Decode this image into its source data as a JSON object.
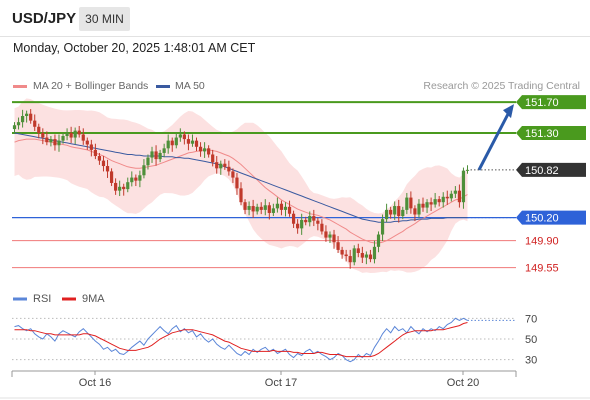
{
  "header": {
    "symbol": "USD/JPY",
    "timeframe": "30 MIN",
    "datetime": "Monday, October 20, 2025 1:48:01 AM CET"
  },
  "legend": {
    "bollinger_label": "MA 20 + Bollinger Bands",
    "ma50_label": "MA 50",
    "research": "Research © 2025 Trading Central",
    "rsi_label": "RSI",
    "rsi_ma_label": "9MA"
  },
  "colors": {
    "up_candle": "#4e8f3a",
    "down_candle": "#c0392b",
    "bollinger_fill": "#fcdcdc",
    "ma20": "#f08a8a",
    "ma50": "#3a5aa0",
    "resistance": "#4a9a1e",
    "pivot": "#2e62d8",
    "support": "#f07878",
    "rsi": "#5b86d8",
    "rsi_ma": "#e02020",
    "projection_arrow": "#2a5aa8"
  },
  "chart_data": [
    {
      "type": "candlestick",
      "title": "USD/JPY",
      "timeframe": "30 MIN",
      "x_tick_labels": [
        "Oct 16",
        "Oct 17",
        "Oct 20"
      ],
      "ylim": [
        149.35,
        151.78
      ],
      "current_price": 150.82,
      "levels": [
        {
          "label": "151.70",
          "value": 151.7,
          "kind": "resistance"
        },
        {
          "label": "151.30",
          "value": 151.3,
          "kind": "resistance"
        },
        {
          "label": "150.82",
          "value": 150.82,
          "kind": "last"
        },
        {
          "label": "150.20",
          "value": 150.2,
          "kind": "pivot"
        },
        {
          "label": "149.90",
          "value": 149.9,
          "kind": "support"
        },
        {
          "label": "149.55",
          "value": 149.55,
          "kind": "support"
        }
      ],
      "projection": {
        "from": 150.82,
        "to": 151.7
      },
      "candles_close": [
        151.4,
        151.44,
        151.52,
        151.55,
        151.46,
        151.38,
        151.3,
        151.24,
        151.18,
        151.22,
        151.14,
        151.2,
        151.26,
        151.3,
        151.24,
        151.33,
        151.28,
        151.2,
        151.15,
        151.08,
        151.0,
        150.94,
        150.87,
        150.8,
        150.65,
        150.55,
        150.6,
        150.57,
        150.66,
        150.72,
        150.68,
        150.75,
        150.88,
        150.98,
        151.06,
        150.96,
        151.04,
        151.1,
        151.2,
        151.14,
        151.24,
        151.28,
        151.22,
        151.16,
        151.2,
        151.12,
        151.06,
        151.1,
        151.02,
        150.92,
        150.84,
        150.9,
        150.86,
        150.8,
        150.72,
        150.58,
        150.4,
        150.3,
        150.35,
        150.28,
        150.34,
        150.3,
        150.36,
        150.26,
        150.32,
        150.38,
        150.3,
        150.34,
        150.25,
        150.12,
        150.06,
        150.17,
        150.14,
        150.22,
        150.16,
        150.12,
        150.02,
        149.94,
        149.98,
        149.88,
        149.78,
        149.72,
        149.7,
        149.62,
        149.8,
        149.74,
        149.68,
        149.72,
        149.66,
        149.82,
        149.98,
        150.18,
        150.3,
        150.24,
        150.35,
        150.22,
        150.3,
        150.46,
        150.32,
        150.24,
        150.38,
        150.33,
        150.4,
        150.37,
        150.44,
        150.4,
        150.47,
        150.45,
        150.51,
        150.55,
        150.4,
        150.81,
        150.82
      ],
      "ma20": [
        151.18,
        151.2,
        151.21,
        151.22,
        151.22,
        151.22,
        151.21,
        151.2,
        151.19,
        151.18,
        151.17,
        151.16,
        151.15,
        151.14,
        151.12,
        151.11,
        151.1,
        151.09,
        151.08,
        151.06,
        151.04,
        151.02,
        151.0,
        150.97,
        150.94,
        150.92,
        150.9,
        150.88,
        150.86,
        150.85,
        150.84,
        150.84,
        150.85,
        150.86,
        150.87,
        150.88,
        150.9,
        150.92,
        150.94,
        150.96,
        150.98,
        151.0,
        151.02,
        151.04,
        151.05,
        151.06,
        151.07,
        151.08,
        151.08,
        151.07,
        151.06,
        151.04,
        151.02,
        151.0,
        150.97,
        150.93,
        150.89,
        150.84,
        150.79,
        150.74,
        150.69,
        150.64,
        150.59,
        150.55,
        150.51,
        150.47,
        150.43,
        150.4,
        150.37,
        150.34,
        150.31,
        150.29,
        150.27,
        150.25,
        150.24,
        150.23,
        150.21,
        150.19,
        150.17,
        150.14,
        150.11,
        150.08,
        150.05,
        150.01,
        149.98,
        149.95,
        149.92,
        149.9,
        149.88,
        149.87,
        149.87,
        149.88,
        149.9,
        149.93,
        149.96,
        149.99,
        150.02,
        150.06,
        150.09,
        150.12,
        150.16,
        150.19,
        150.22,
        150.25,
        150.28,
        150.31,
        150.34,
        150.37,
        150.4,
        150.43,
        150.44,
        150.47,
        150.5
      ],
      "ma50": [
        151.3,
        151.29,
        151.28,
        151.27,
        151.26,
        151.25,
        151.24,
        151.23,
        151.22,
        151.21,
        151.2,
        151.19,
        151.18,
        151.17,
        151.16,
        151.15,
        151.14,
        151.13,
        151.12,
        151.11,
        151.1,
        151.09,
        151.08,
        151.07,
        151.06,
        151.05,
        151.04,
        151.03,
        151.02,
        151.02,
        151.01,
        151.01,
        151.0,
        151.0,
        151.0,
        151.0,
        151.0,
        150.99,
        150.99,
        150.99,
        150.98,
        150.98,
        150.97,
        150.97,
        150.96,
        150.95,
        150.94,
        150.93,
        150.92,
        150.91,
        150.9,
        150.88,
        150.86,
        150.84,
        150.82,
        150.8,
        150.78,
        150.76,
        150.74,
        150.72,
        150.7,
        150.68,
        150.66,
        150.64,
        150.62,
        150.6,
        150.58,
        150.56,
        150.54,
        150.52,
        150.5,
        150.48,
        150.46,
        150.44,
        150.42,
        150.4,
        150.38,
        150.36,
        150.34,
        150.32,
        150.3,
        150.28,
        150.26,
        150.24,
        150.22,
        150.2,
        150.18,
        150.17,
        150.16,
        150.15,
        150.14,
        150.14,
        150.14,
        150.14,
        150.15,
        150.15,
        150.16,
        150.16,
        150.17,
        150.17,
        150.18,
        150.18,
        150.18,
        150.19,
        150.19,
        150.19,
        150.19,
        150.2,
        150.2,
        150.2,
        150.2,
        150.2,
        150.2
      ]
    },
    {
      "type": "line",
      "title": "RSI",
      "ylim": [
        20,
        80
      ],
      "y_tick_labels": [
        "70",
        "50",
        "30"
      ],
      "y_ticks": [
        70,
        50,
        30
      ],
      "series": [
        {
          "name": "RSI",
          "values": [
            62,
            63,
            60,
            58,
            60,
            55,
            52,
            50,
            55,
            52,
            48,
            55,
            58,
            56,
            54,
            52,
            57,
            60,
            56,
            52,
            48,
            45,
            40,
            42,
            38,
            40,
            36,
            35,
            38,
            42,
            45,
            48,
            44,
            50,
            54,
            58,
            62,
            58,
            55,
            60,
            63,
            57,
            60,
            56,
            58,
            52,
            55,
            50,
            47,
            50,
            45,
            42,
            40,
            44,
            40,
            36,
            34,
            38,
            35,
            40,
            37,
            40,
            42,
            38,
            40,
            36,
            38,
            40,
            35,
            32,
            36,
            34,
            38,
            40,
            36,
            38,
            35,
            33,
            30,
            32,
            36,
            34,
            30,
            28,
            30,
            35,
            32,
            36,
            34,
            42,
            48,
            55,
            60,
            56,
            62,
            58,
            60,
            56,
            62,
            58,
            55,
            60,
            57,
            60,
            58,
            62,
            60,
            64,
            66,
            70,
            68,
            70,
            68
          ]
        },
        {
          "name": "9MA",
          "values": [
            59,
            59,
            59,
            59,
            58,
            58,
            57,
            56,
            55,
            55,
            54,
            54,
            54,
            54,
            54,
            54,
            54,
            55,
            55,
            54,
            53,
            51,
            49,
            47,
            45,
            43,
            41,
            40,
            39,
            39,
            39,
            40,
            41,
            42,
            44,
            47,
            50,
            52,
            54,
            56,
            57,
            58,
            59,
            59,
            59,
            58,
            57,
            56,
            55,
            54,
            52,
            50,
            48,
            47,
            45,
            43,
            41,
            40,
            39,
            38,
            38,
            38,
            38,
            38,
            39,
            38,
            38,
            38,
            38,
            37,
            37,
            36,
            36,
            36,
            36,
            37,
            37,
            36,
            35,
            35,
            35,
            34,
            33,
            33,
            33,
            33,
            33,
            33,
            33,
            34,
            36,
            39,
            42,
            45,
            48,
            51,
            54,
            56,
            57,
            58,
            58,
            58,
            58,
            58,
            59,
            59,
            59,
            60,
            61,
            62,
            63,
            65,
            66
          ]
        }
      ]
    }
  ]
}
